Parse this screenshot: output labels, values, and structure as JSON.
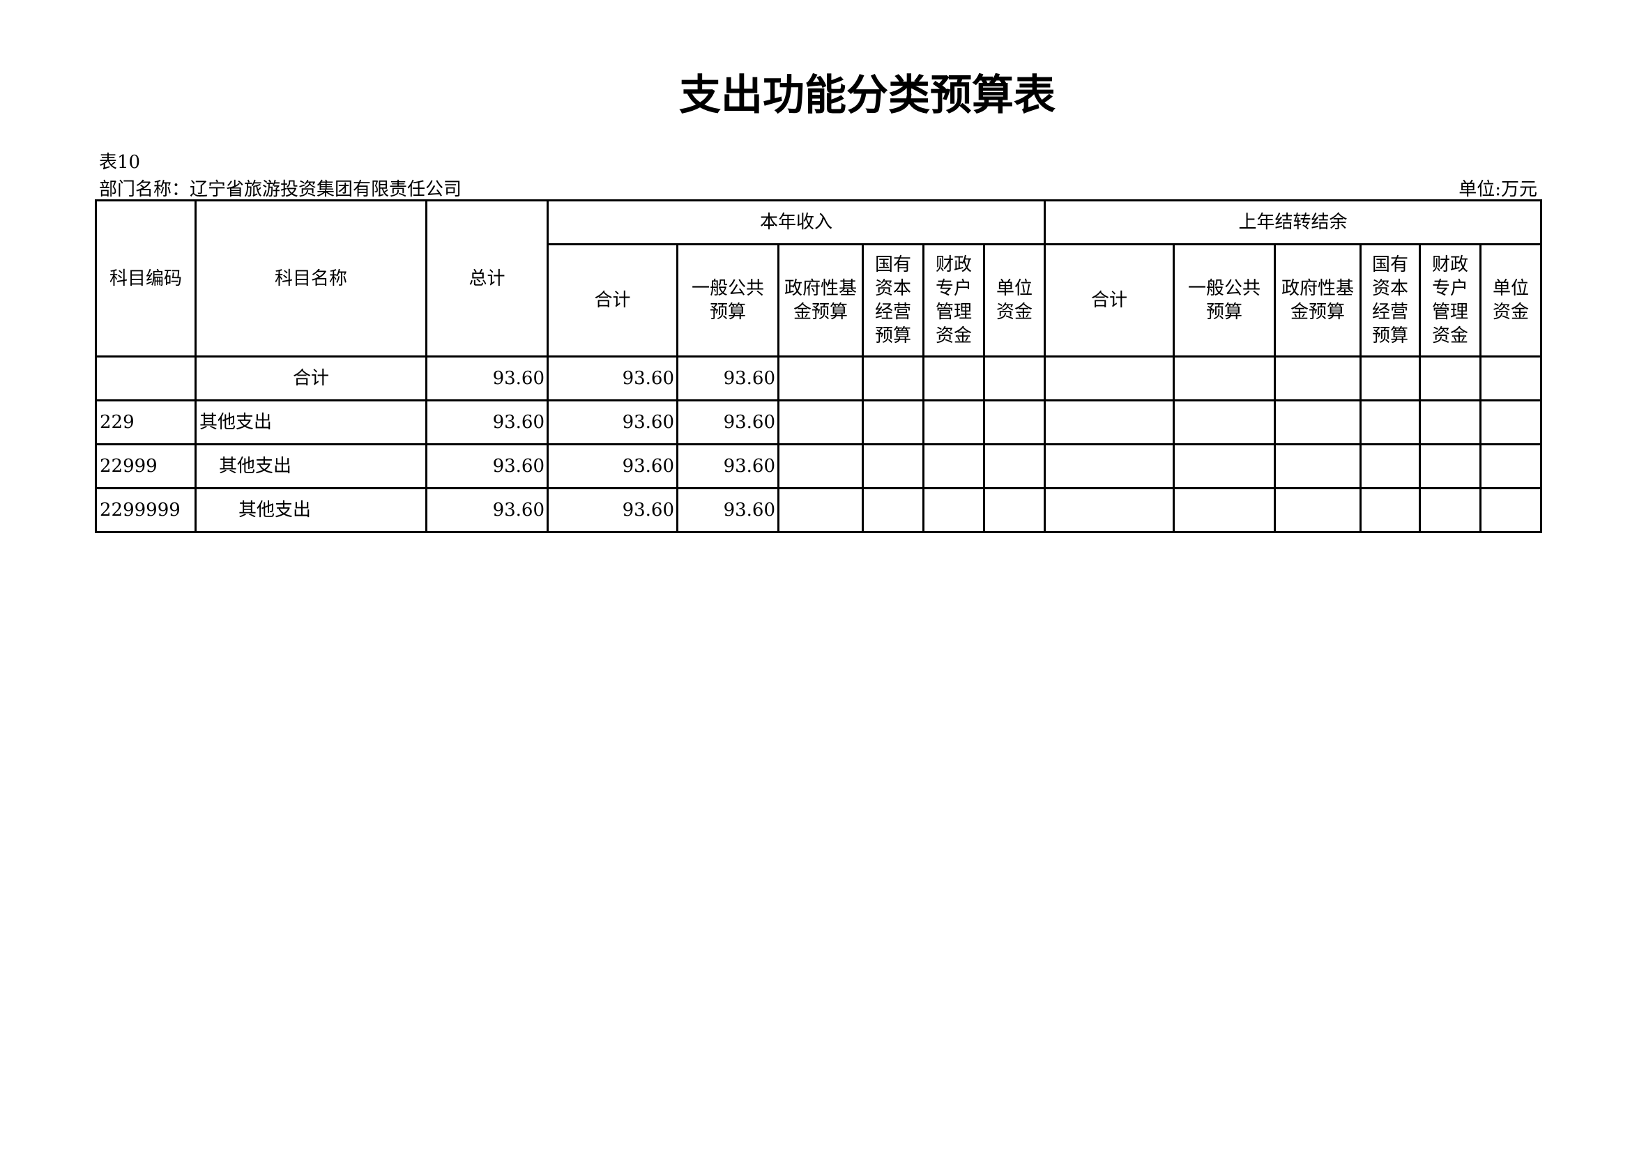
{
  "title": "支出功能分类预算表",
  "table_no": "表10",
  "department": "部门名称：辽宁省旅游投资集团有限责任公司",
  "unit": "单位:万元",
  "headers": {
    "code": "科目编码",
    "name": "科目名称",
    "total": "总计",
    "current": "本年收入",
    "carryover": "上年结转结余",
    "sub": [
      [
        "合计"
      ],
      [
        "一般公共",
        "预算"
      ],
      [
        "政府性基",
        "金预算"
      ],
      [
        "国有",
        "资本",
        "经营",
        "预算"
      ],
      [
        "财政",
        "专户",
        "管理",
        "资金"
      ],
      [
        "单位",
        "资金"
      ]
    ]
  },
  "rows": [
    {
      "code": "",
      "name": "合计",
      "indent": "center",
      "total": "93.60",
      "cur_total": "93.60",
      "cur_general": "93.60"
    },
    {
      "code": "229",
      "name": "其他支出",
      "indent": 0,
      "total": "93.60",
      "cur_total": "93.60",
      "cur_general": "93.60"
    },
    {
      "code": "22999",
      "name": "其他支出",
      "indent": 1,
      "total": "93.60",
      "cur_total": "93.60",
      "cur_general": "93.60"
    },
    {
      "code": "2299999",
      "name": "其他支出",
      "indent": 2,
      "total": "93.60",
      "cur_total": "93.60",
      "cur_general": "93.60"
    }
  ]
}
